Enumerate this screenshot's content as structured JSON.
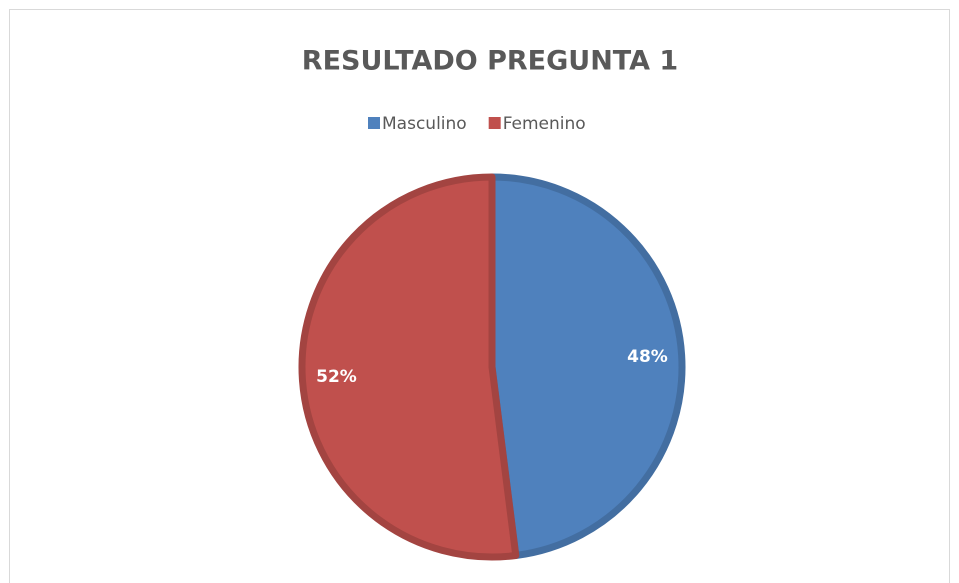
{
  "chart_data": {
    "type": "pie",
    "title": "RESULTADO PREGUNTA 1",
    "categories": [
      "Masculino",
      "Femenino"
    ],
    "values": [
      48,
      52
    ],
    "value_labels": [
      "48%",
      "52%"
    ],
    "colors": [
      "#4f81bd",
      "#c0504d"
    ],
    "legend": "top"
  }
}
